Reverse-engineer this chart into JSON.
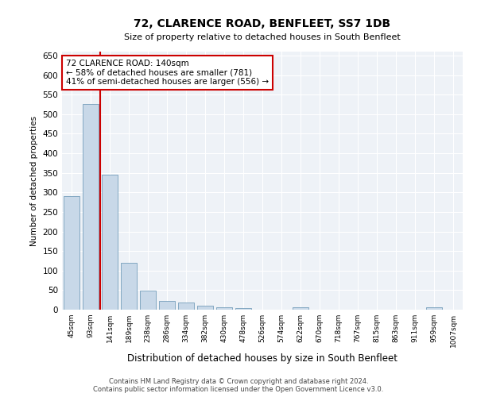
{
  "title": "72, CLARENCE ROAD, BENFLEET, SS7 1DB",
  "subtitle": "Size of property relative to detached houses in South Benfleet",
  "xlabel": "Distribution of detached houses by size in South Benfleet",
  "ylabel": "Number of detached properties",
  "bar_color": "#c8d8e8",
  "bar_edge_color": "#6090b0",
  "background_color": "#eef2f7",
  "annotation_line_color": "#cc0000",
  "annotation_box_color": "#cc0000",
  "categories": [
    "45sqm",
    "93sqm",
    "141sqm",
    "189sqm",
    "238sqm",
    "286sqm",
    "334sqm",
    "382sqm",
    "430sqm",
    "478sqm",
    "526sqm",
    "574sqm",
    "622sqm",
    "670sqm",
    "718sqm",
    "767sqm",
    "815sqm",
    "863sqm",
    "911sqm",
    "959sqm",
    "1007sqm"
  ],
  "values": [
    290,
    525,
    345,
    120,
    48,
    22,
    18,
    10,
    6,
    5,
    0,
    0,
    7,
    0,
    0,
    0,
    0,
    0,
    0,
    7,
    0
  ],
  "ylim": [
    0,
    660
  ],
  "yticks": [
    0,
    50,
    100,
    150,
    200,
    250,
    300,
    350,
    400,
    450,
    500,
    550,
    600,
    650
  ],
  "property_line_x": 1.5,
  "annotation_text_line1": "72 CLARENCE ROAD: 140sqm",
  "annotation_text_line2": "← 58% of detached houses are smaller (781)",
  "annotation_text_line3": "41% of semi-detached houses are larger (556) →",
  "footer_line1": "Contains HM Land Registry data © Crown copyright and database right 2024.",
  "footer_line2": "Contains public sector information licensed under the Open Government Licence v3.0."
}
